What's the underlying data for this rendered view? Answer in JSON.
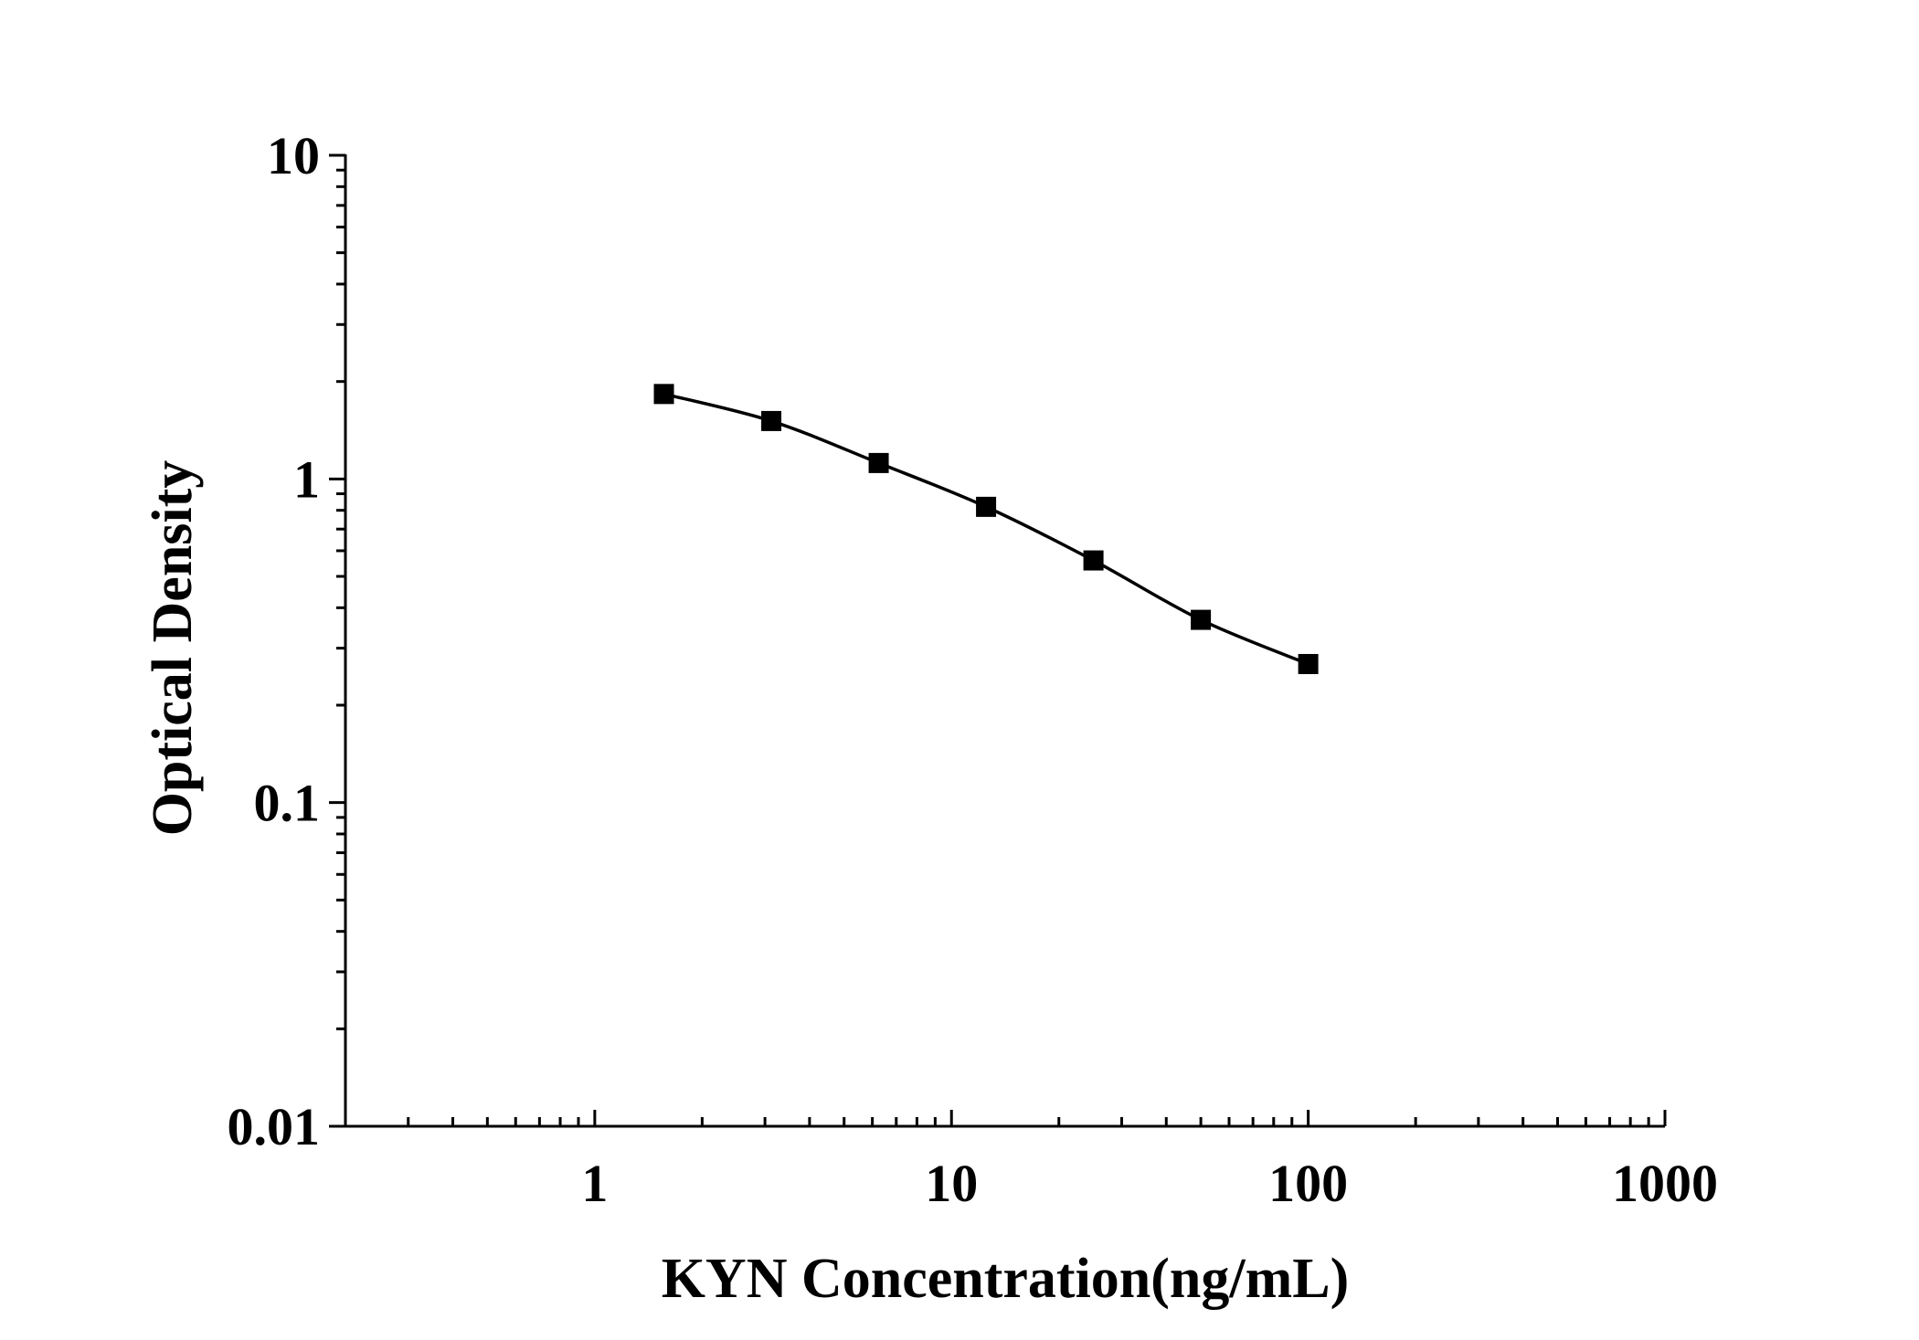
{
  "chart_data": {
    "type": "line",
    "xlabel": "KYN Concentration(ng/mL)",
    "ylabel": "Optical Density",
    "xscale": "log",
    "yscale": "log",
    "xlim": [
      0.2,
      1000
    ],
    "ylim": [
      0.01,
      10
    ],
    "x_ticks": [
      {
        "value": 1,
        "label": "1"
      },
      {
        "value": 10,
        "label": "10"
      },
      {
        "value": 100,
        "label": "100"
      },
      {
        "value": 1000,
        "label": "1000"
      }
    ],
    "y_ticks": [
      {
        "value": 0.01,
        "label": "0.01"
      },
      {
        "value": 0.1,
        "label": "0.1"
      },
      {
        "value": 1,
        "label": "1"
      },
      {
        "value": 10,
        "label": "10"
      }
    ],
    "grid": false,
    "marker": "square",
    "color": "#000000",
    "series": [
      {
        "x": [
          1.5625,
          3.125,
          6.25,
          12.5,
          25,
          50,
          100
        ],
        "y": [
          1.83,
          1.51,
          1.12,
          0.82,
          0.56,
          0.367,
          0.268
        ]
      }
    ]
  }
}
